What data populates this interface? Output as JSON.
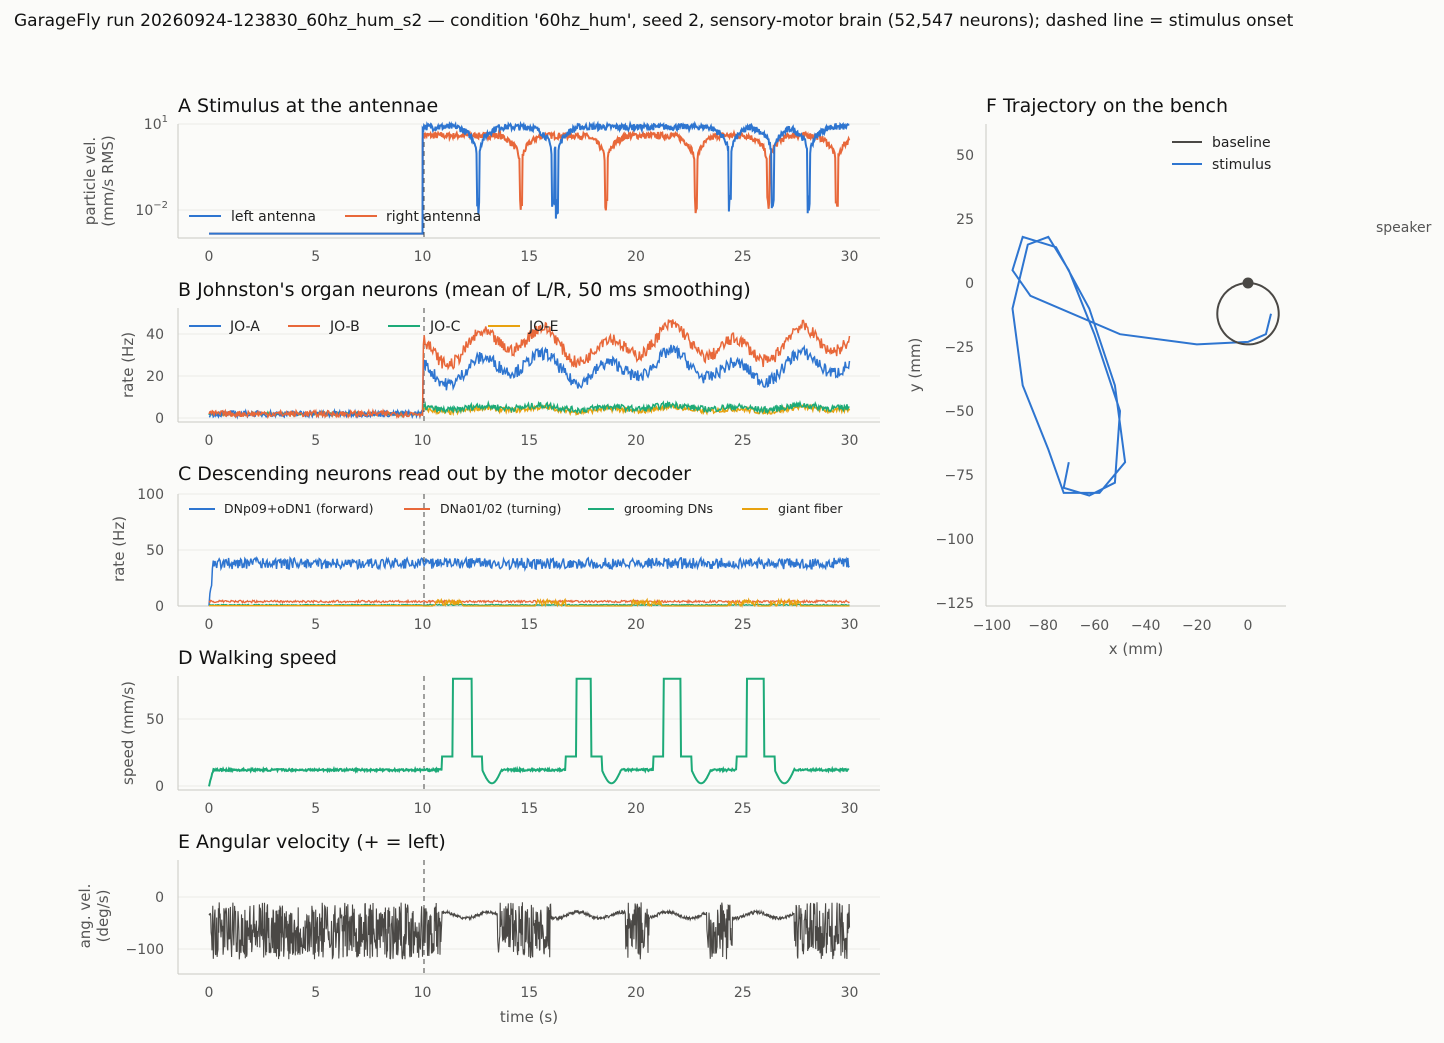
{
  "suptitle": "GarageFly run 20260924-123830_60hz_hum_s2 — condition '60hz_hum', seed 2, sensory-motor brain (52,547 neurons); dashed line = stimulus onset",
  "colors": {
    "blue": "#2e75d0",
    "orange": "#e8683a",
    "green": "#1daa78",
    "yellow": "#e8a20f",
    "dark": "#4a4845",
    "traj_baseline": "#4a4845"
  },
  "stimulus_onset_s": 10,
  "time_ticks": [
    "0",
    "5",
    "10",
    "15",
    "20",
    "25",
    "30"
  ],
  "xlabel": "time (s)",
  "chart_data": [
    {
      "panel": "A",
      "type": "line",
      "title": "A  Stimulus at the antennae",
      "ylabel": [
        "particle vel.",
        "(mm/s RMS)"
      ],
      "yscale": "log",
      "yticks": [
        "10^1",
        "10^-2"
      ],
      "xlim": [
        0,
        30
      ],
      "series": [
        {
          "name": "left antenna",
          "baseline": 0.0015,
          "onset_value": 8,
          "dip_times": [
            12.6,
            16.1,
            16.3,
            24.4,
            26.4,
            28.1
          ],
          "color": "blue"
        },
        {
          "name": "right antenna",
          "baseline": 0.0015,
          "onset_value": 4,
          "dip_times": [
            14.6,
            18.6,
            22.8,
            26.2,
            29.4
          ],
          "color": "orange"
        }
      ]
    },
    {
      "panel": "B",
      "type": "line",
      "title": "B  Johnston's organ neurons (mean of L/R, 50 ms smoothing)",
      "ylabel": [
        "rate (Hz)"
      ],
      "yticks": [
        "0",
        "20",
        "40"
      ],
      "ylim": [
        0,
        52
      ],
      "series": [
        {
          "name": "JO-A",
          "before": 2,
          "after_mean": 24
        },
        {
          "name": "JO-B",
          "before": 2,
          "after_mean": 35
        },
        {
          "name": "JO-C",
          "before": 2,
          "after_mean": 5
        },
        {
          "name": "JO-E",
          "before": 2,
          "after_mean": 4
        }
      ]
    },
    {
      "panel": "C",
      "type": "line",
      "title": "C  Descending neurons read out by the motor decoder",
      "ylabel": [
        "rate (Hz)"
      ],
      "yticks": [
        "0",
        "50",
        "100"
      ],
      "ylim": [
        0,
        100
      ],
      "series": [
        {
          "name": "DNp09+oDN1 (forward)",
          "mean": 38
        },
        {
          "name": "DNa01/02 (turning)",
          "mean": 3
        },
        {
          "name": "grooming DNs",
          "mean": 1
        },
        {
          "name": "giant fiber",
          "mean": 1,
          "bursts_at": [
            11.2,
            16,
            20.5,
            25,
            27
          ]
        }
      ]
    },
    {
      "panel": "D",
      "type": "line",
      "title": "D  Walking speed",
      "ylabel": [
        "speed (mm/s)"
      ],
      "yticks": [
        "0",
        "50"
      ],
      "ylim": [
        0,
        80
      ],
      "series": [
        {
          "name": "speed",
          "base": 12,
          "peak": 80,
          "peak_windows": [
            [
              11.4,
              12.3
            ],
            [
              17.2,
              17.9
            ],
            [
              21.3,
              22.1
            ],
            [
              25.2,
              26
            ]
          ]
        }
      ]
    },
    {
      "panel": "E",
      "type": "line",
      "title": "E  Angular velocity (+ = left)",
      "ylabel": [
        "ang. vel.",
        "(deg/s)"
      ],
      "yticks": [
        "0",
        "−100"
      ],
      "ylim": [
        -140,
        70
      ],
      "series": [
        {
          "name": "angular velocity",
          "noisy_windows": [
            [
              0.1,
              10.9
            ],
            [
              13.5,
              16
            ],
            [
              19.5,
              20.6
            ],
            [
              23.3,
              24.5
            ],
            [
              27.4,
              30
            ]
          ]
        }
      ]
    },
    {
      "panel": "F",
      "type": "line",
      "title": "F  Trajectory on the bench",
      "xlabel": "x (mm)",
      "ylabel": [
        "y (mm)"
      ],
      "xticks": [
        "−100",
        "−80",
        "−60",
        "−40",
        "−20",
        "0"
      ],
      "yticks": [
        "50",
        "25",
        "0",
        "−25",
        "−50",
        "−75",
        "−100",
        "−125"
      ],
      "xlim": [
        -102,
        15
      ],
      "ylim": [
        -128,
        63
      ],
      "series": [
        {
          "name": "baseline",
          "color": "traj_baseline"
        },
        {
          "name": "stimulus",
          "color": "blue"
        }
      ],
      "annotation": "speaker"
    }
  ]
}
